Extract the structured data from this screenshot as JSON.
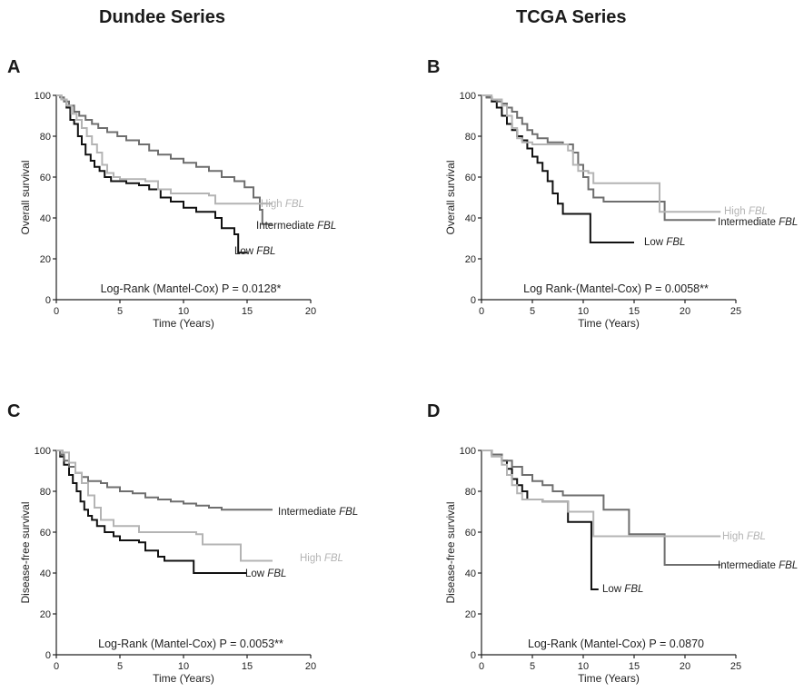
{
  "column_titles": [
    "Dundee Series",
    "TCGA Series"
  ],
  "panel_letters": [
    "A",
    "B",
    "C",
    "D"
  ],
  "colors": {
    "low": "#111111",
    "intermediate": "#6e6e6e",
    "high": "#b4b4b4",
    "axis": "#222222"
  },
  "chart_data": [
    {
      "type": "line",
      "panel": "A",
      "xlabel": "Time (Years)",
      "ylabel": "Overall survival",
      "xlim": [
        0,
        20
      ],
      "ylim": [
        0,
        100
      ],
      "xticks": [
        0,
        5,
        10,
        15,
        20
      ],
      "yticks": [
        0,
        20,
        40,
        60,
        80,
        100
      ],
      "annotation": "Log-Rank (Mantel-Cox) P = 0.0128*",
      "series": [
        {
          "name": "Low",
          "name_suffix": "FBL",
          "color_key": "low",
          "points": [
            [
              0,
              100
            ],
            [
              0.4,
              98
            ],
            [
              0.8,
              94
            ],
            [
              1.1,
              88
            ],
            [
              1.4,
              86
            ],
            [
              1.7,
              80
            ],
            [
              2.0,
              76
            ],
            [
              2.3,
              71
            ],
            [
              2.7,
              68
            ],
            [
              3.0,
              65
            ],
            [
              3.4,
              63
            ],
            [
              3.8,
              60
            ],
            [
              4.3,
              58
            ],
            [
              5.5,
              57
            ],
            [
              6.5,
              56
            ],
            [
              7.3,
              54
            ],
            [
              8.2,
              50
            ],
            [
              9.0,
              48
            ],
            [
              10.0,
              45
            ],
            [
              11.0,
              43
            ],
            [
              12.5,
              40
            ],
            [
              13.0,
              35
            ],
            [
              14.0,
              32
            ],
            [
              14.3,
              23
            ],
            [
              15.0,
              23
            ]
          ]
        },
        {
          "name": "Intermediate",
          "name_suffix": "FBL",
          "color_key": "intermediate",
          "points": [
            [
              0,
              100
            ],
            [
              0.3,
              99
            ],
            [
              0.6,
              97
            ],
            [
              1.0,
              95
            ],
            [
              1.4,
              92
            ],
            [
              1.8,
              90
            ],
            [
              2.3,
              88
            ],
            [
              2.8,
              86
            ],
            [
              3.3,
              84
            ],
            [
              4.0,
              82
            ],
            [
              4.8,
              80
            ],
            [
              5.5,
              78
            ],
            [
              6.5,
              76
            ],
            [
              7.3,
              73
            ],
            [
              8.0,
              71
            ],
            [
              9.0,
              69
            ],
            [
              10.0,
              67
            ],
            [
              11.0,
              65
            ],
            [
              12.0,
              63
            ],
            [
              13.0,
              60
            ],
            [
              14.0,
              58
            ],
            [
              14.8,
              55
            ],
            [
              15.5,
              50
            ],
            [
              16.0,
              44
            ],
            [
              16.2,
              37
            ],
            [
              17.0,
              37
            ]
          ]
        },
        {
          "name": "High",
          "name_suffix": "FBL",
          "color_key": "high",
          "points": [
            [
              0,
              100
            ],
            [
              0.4,
              98
            ],
            [
              0.8,
              95
            ],
            [
              1.2,
              91
            ],
            [
              1.6,
              88
            ],
            [
              2.0,
              84
            ],
            [
              2.4,
              80
            ],
            [
              2.8,
              76
            ],
            [
              3.2,
              72
            ],
            [
              3.6,
              66
            ],
            [
              4.0,
              62
            ],
            [
              4.5,
              60
            ],
            [
              5.0,
              59
            ],
            [
              7.0,
              58
            ],
            [
              8.0,
              54
            ],
            [
              9.0,
              52
            ],
            [
              11.0,
              52
            ],
            [
              12.0,
              51
            ],
            [
              12.5,
              47
            ],
            [
              17.0,
              47
            ]
          ]
        }
      ]
    },
    {
      "type": "line",
      "panel": "B",
      "xlabel": "Time (Years)",
      "ylabel": "Overall survival",
      "xlim": [
        0,
        25
      ],
      "ylim": [
        0,
        100
      ],
      "xticks": [
        0,
        5,
        10,
        15,
        20,
        25
      ],
      "yticks": [
        0,
        20,
        40,
        60,
        80,
        100
      ],
      "annotation": "Log Rank-(Mantel-Cox) P = 0.0058**",
      "series": [
        {
          "name": "Low",
          "name_suffix": "FBL",
          "color_key": "low",
          "points": [
            [
              0,
              100
            ],
            [
              0.5,
              99
            ],
            [
              1.0,
              97
            ],
            [
              1.5,
              94
            ],
            [
              2.0,
              90
            ],
            [
              2.5,
              86
            ],
            [
              3.0,
              83
            ],
            [
              3.5,
              80
            ],
            [
              4.0,
              78
            ],
            [
              4.5,
              74
            ],
            [
              5.0,
              70
            ],
            [
              5.5,
              67
            ],
            [
              6.0,
              63
            ],
            [
              6.5,
              58
            ],
            [
              7.0,
              52
            ],
            [
              7.5,
              47
            ],
            [
              8.0,
              42
            ],
            [
              10.5,
              42
            ],
            [
              10.7,
              28
            ],
            [
              15.0,
              28
            ]
          ]
        },
        {
          "name": "Intermediate",
          "name_suffix": "FBL",
          "color_key": "intermediate",
          "points": [
            [
              0,
              100
            ],
            [
              0.5,
              99
            ],
            [
              1.0,
              98
            ],
            [
              1.5,
              97
            ],
            [
              2.0,
              96
            ],
            [
              2.5,
              94
            ],
            [
              3.0,
              92
            ],
            [
              3.5,
              89
            ],
            [
              4.0,
              86
            ],
            [
              4.5,
              83
            ],
            [
              5.0,
              81
            ],
            [
              5.5,
              79
            ],
            [
              6.5,
              77
            ],
            [
              8.0,
              76
            ],
            [
              9.0,
              72
            ],
            [
              9.5,
              66
            ],
            [
              10.0,
              60
            ],
            [
              10.5,
              54
            ],
            [
              11.0,
              50
            ],
            [
              12.0,
              48
            ],
            [
              17.5,
              48
            ],
            [
              18.0,
              39
            ],
            [
              23.0,
              39
            ]
          ]
        },
        {
          "name": "High",
          "name_suffix": "FBL",
          "color_key": "high",
          "points": [
            [
              0,
              100
            ],
            [
              1.0,
              98
            ],
            [
              2.0,
              95
            ],
            [
              2.5,
              90
            ],
            [
              3.0,
              84
            ],
            [
              3.5,
              79
            ],
            [
              4.0,
              77
            ],
            [
              5.0,
              76
            ],
            [
              8.0,
              76
            ],
            [
              8.5,
              73
            ],
            [
              9.0,
              66
            ],
            [
              9.5,
              63
            ],
            [
              10.5,
              62
            ],
            [
              11.0,
              57
            ],
            [
              17.0,
              57
            ],
            [
              17.5,
              43
            ],
            [
              23.5,
              43
            ]
          ]
        }
      ]
    },
    {
      "type": "line",
      "panel": "C",
      "xlabel": "Time (Years)",
      "ylabel": "Disease-free survival",
      "xlim": [
        0,
        20
      ],
      "ylim": [
        0,
        100
      ],
      "xticks": [
        0,
        5,
        10,
        15,
        20
      ],
      "yticks": [
        0,
        20,
        40,
        60,
        80,
        100
      ],
      "annotation": "Log-Rank (Mantel-Cox) P = 0.0053**",
      "series": [
        {
          "name": "Low",
          "name_suffix": "FBL",
          "color_key": "low",
          "points": [
            [
              0,
              100
            ],
            [
              0.3,
              97
            ],
            [
              0.6,
              93
            ],
            [
              1.0,
              88
            ],
            [
              1.3,
              84
            ],
            [
              1.6,
              80
            ],
            [
              1.9,
              75
            ],
            [
              2.2,
              71
            ],
            [
              2.5,
              68
            ],
            [
              2.8,
              66
            ],
            [
              3.2,
              63
            ],
            [
              3.8,
              60
            ],
            [
              4.5,
              58
            ],
            [
              5.0,
              56
            ],
            [
              6.5,
              55
            ],
            [
              7.0,
              51
            ],
            [
              8.0,
              48
            ],
            [
              8.5,
              46
            ],
            [
              10.5,
              46
            ],
            [
              10.8,
              40
            ],
            [
              15.0,
              40
            ]
          ]
        },
        {
          "name": "Intermediate",
          "name_suffix": "FBL",
          "color_key": "intermediate",
          "points": [
            [
              0,
              100
            ],
            [
              0.3,
              98
            ],
            [
              0.6,
              95
            ],
            [
              1.0,
              92
            ],
            [
              1.5,
              89
            ],
            [
              2.0,
              87
            ],
            [
              2.5,
              85
            ],
            [
              3.5,
              84
            ],
            [
              4.0,
              82
            ],
            [
              5.0,
              80
            ],
            [
              6.0,
              79
            ],
            [
              7.0,
              77
            ],
            [
              8.0,
              76
            ],
            [
              9.0,
              75
            ],
            [
              10.0,
              74
            ],
            [
              11.0,
              73
            ],
            [
              12.0,
              72
            ],
            [
              13.0,
              71
            ],
            [
              17.0,
              71
            ]
          ]
        },
        {
          "name": "High",
          "name_suffix": "FBL",
          "color_key": "high",
          "points": [
            [
              0,
              100
            ],
            [
              0.5,
              99
            ],
            [
              1.0,
              94
            ],
            [
              1.5,
              89
            ],
            [
              2.0,
              84
            ],
            [
              2.5,
              78
            ],
            [
              3.0,
              72
            ],
            [
              3.5,
              66
            ],
            [
              4.5,
              63
            ],
            [
              6.0,
              63
            ],
            [
              6.5,
              60
            ],
            [
              10.0,
              60
            ],
            [
              11.0,
              59
            ],
            [
              11.5,
              54
            ],
            [
              14.0,
              54
            ],
            [
              14.5,
              46
            ],
            [
              17.0,
              46
            ]
          ]
        }
      ]
    },
    {
      "type": "line",
      "panel": "D",
      "xlabel": "Time (Years)",
      "ylabel": "Disease-free survival",
      "xlim": [
        0,
        25
      ],
      "ylim": [
        0,
        100
      ],
      "xticks": [
        0,
        5,
        10,
        15,
        20,
        25
      ],
      "yticks": [
        0,
        20,
        40,
        60,
        80,
        100
      ],
      "annotation": "Log-Rank (Mantel-Cox) P = 0.0870",
      "series": [
        {
          "name": "Low",
          "name_suffix": "FBL",
          "color_key": "low",
          "points": [
            [
              0,
              100
            ],
            [
              1.0,
              98
            ],
            [
              2.0,
              95
            ],
            [
              2.5,
              91
            ],
            [
              3.0,
              86
            ],
            [
              3.5,
              83
            ],
            [
              4.0,
              80
            ],
            [
              4.5,
              76
            ],
            [
              6.0,
              75
            ],
            [
              8.0,
              75
            ],
            [
              8.5,
              65
            ],
            [
              10.5,
              65
            ],
            [
              10.8,
              32
            ],
            [
              11.5,
              32
            ]
          ]
        },
        {
          "name": "Intermediate",
          "name_suffix": "FBL",
          "color_key": "intermediate",
          "points": [
            [
              0,
              100
            ],
            [
              1.0,
              98
            ],
            [
              2.0,
              95
            ],
            [
              3.0,
              92
            ],
            [
              4.0,
              88
            ],
            [
              5.0,
              85
            ],
            [
              6.0,
              83
            ],
            [
              7.0,
              80
            ],
            [
              8.0,
              78
            ],
            [
              11.5,
              78
            ],
            [
              12.0,
              71
            ],
            [
              14.0,
              71
            ],
            [
              14.5,
              59
            ],
            [
              17.5,
              59
            ],
            [
              18.0,
              44
            ],
            [
              23.5,
              44
            ]
          ]
        },
        {
          "name": "High",
          "name_suffix": "FBL",
          "color_key": "high",
          "points": [
            [
              0,
              100
            ],
            [
              1.0,
              97
            ],
            [
              2.0,
              93
            ],
            [
              2.5,
              88
            ],
            [
              3.0,
              83
            ],
            [
              3.5,
              79
            ],
            [
              4.0,
              76
            ],
            [
              6.0,
              75
            ],
            [
              8.0,
              75
            ],
            [
              8.5,
              70
            ],
            [
              10.5,
              70
            ],
            [
              11.0,
              58
            ],
            [
              23.5,
              58
            ]
          ]
        }
      ]
    }
  ]
}
